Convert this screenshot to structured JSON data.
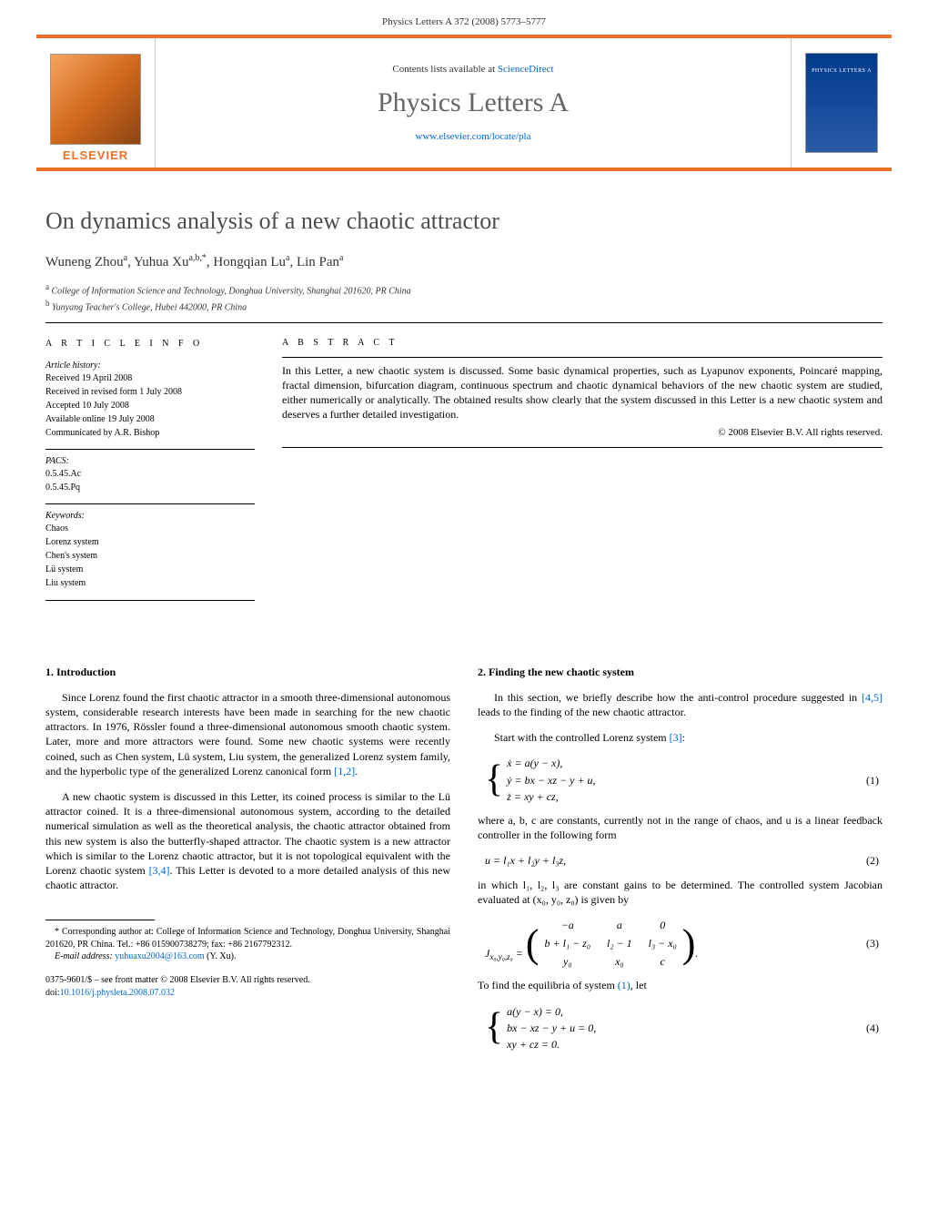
{
  "header": {
    "running_head": "Physics Letters A 372 (2008) 5773–5777"
  },
  "banner": {
    "contents_prefix": "Contents lists available at ",
    "contents_link": "ScienceDirect",
    "journal_title": "Physics Letters A",
    "journal_url": "www.elsevier.com/locate/pla",
    "publisher_logo_text": "ELSEVIER",
    "cover_text": "PHYSICS LETTERS A"
  },
  "article": {
    "title": "On dynamics analysis of a new chaotic attractor",
    "authors_html": "Wuneng Zhou<sup>a</sup>, Yuhua Xu<sup>a,b,*</sup>, Hongqian Lu<sup>a</sup>, Lin Pan<sup>a</sup>",
    "affiliations": [
      {
        "sup": "a",
        "text": "College of Information Science and Technology, Donghua University, Shanghai 201620, PR China"
      },
      {
        "sup": "b",
        "text": "Yunyang Teacher's College, Hubei 442000, PR China"
      }
    ]
  },
  "info": {
    "heading": "a r t i c l e   i n f o",
    "history_label": "Article history:",
    "history": [
      "Received 19 April 2008",
      "Received in revised form 1 July 2008",
      "Accepted 10 July 2008",
      "Available online 19 July 2008",
      "Communicated by A.R. Bishop"
    ],
    "pacs_label": "PACS:",
    "pacs": [
      "0.5.45.Ac",
      "0.5.45.Pq"
    ],
    "keywords_label": "Keywords:",
    "keywords": [
      "Chaos",
      "Lorenz system",
      "Chen's system",
      "Lü system",
      "Liu system"
    ]
  },
  "abstract": {
    "heading": "a b s t r a c t",
    "text": "In this Letter, a new chaotic system is discussed. Some basic dynamical properties, such as Lyapunov exponents, Poincaré mapping, fractal dimension, bifurcation diagram, continuous spectrum and chaotic dynamical behaviors of the new chaotic system are studied, either numerically or analytically. The obtained results show clearly that the system discussed in this Letter is a new chaotic system and deserves a further detailed investigation.",
    "copyright": "© 2008 Elsevier B.V. All rights reserved."
  },
  "body": {
    "left": {
      "section_heading": "1. Introduction",
      "p1": "Since Lorenz found the first chaotic attractor in a smooth three-dimensional autonomous system, considerable research interests have been made in searching for the new chaotic attractors. In 1976, Rössler found a three-dimensional autonomous smooth chaotic system. Later, more and more attractors were found. Some new chaotic systems were recently coined, such as Chen system, Lü system, Liu system, the generalized Lorenz system family, and the hyperbolic type of the generalized Lorenz canonical form ",
      "p1_ref": "[1,2]",
      "p1_end": ".",
      "p2": "A new chaotic system is discussed in this Letter, its coined process is similar to the Lü attractor coined. It is a three-dimensional autonomous system, according to the detailed numerical simulation as well as the theoretical analysis, the chaotic attractor obtained from this new system is also the butterfly-shaped attractor. The chaotic system is a new attractor which is similar to the Lorenz chaotic attractor, but it is not topological equivalent with the Lorenz chaotic system ",
      "p2_ref": "[3,4]",
      "p2_end": ". This Letter is devoted to a more detailed analysis of this new chaotic attractor.",
      "footnote_corr": "* Corresponding author at: College of Information Science and Technology, Donghua University, Shanghai 201620, PR China. Tel.: +86 015900738279; fax: +86 2167792312.",
      "footnote_email_label": "E-mail address:",
      "footnote_email": "yuhuaxu2004@163.com",
      "footnote_email_name": "(Y. Xu).",
      "bottom_issn": "0375-9601/$ – see front matter  © 2008 Elsevier B.V. All rights reserved.",
      "bottom_doi_label": "doi:",
      "bottom_doi": "10.1016/j.physleta.2008.07.032"
    },
    "right": {
      "section_heading": "2. Finding the new chaotic system",
      "p1a": "In this section, we briefly describe how the anti-control procedure suggested in ",
      "p1_ref": "[4,5]",
      "p1b": " leads to the finding of the new chaotic attractor.",
      "p2a": "Start with the controlled Lorenz system ",
      "p2_ref": "[3]",
      "p2b": ":",
      "eq1": {
        "l1": "ẋ = a(y − x),",
        "l2": "ẏ = bx − xz − y + u,",
        "l3": "ż = xy + cz,",
        "num": "(1)"
      },
      "p3": "where a, b, c are constants, currently not in the range of chaos, and u is a linear feedback controller in the following form",
      "eq2": {
        "line": "u = l₁x + l₂y + l₃z,",
        "num": "(2)"
      },
      "p4": "in which l₁, l₂, l₃ are constant gains to be determined. The controlled system Jacobian evaluated at (x₀, y₀, z₀) is given by",
      "eq3": {
        "lhs": "J",
        "sub": "x₀,y₀,z₀",
        "m": [
          [
            "−a",
            "a",
            "0"
          ],
          [
            "b + l₁ − z₀",
            "l₂ − 1",
            "l₃ − x₀"
          ],
          [
            "y₀",
            "x₀",
            "c"
          ]
        ],
        "num": "(3)"
      },
      "p5a": "To find the equilibria of system ",
      "p5_ref": "(1)",
      "p5b": ", let",
      "eq4": {
        "l1": "a(y − x) = 0,",
        "l2": "bx − xz − y + u = 0,",
        "l3": "xy + cz = 0.",
        "num": "(4)"
      }
    }
  },
  "colors": {
    "accent": "#ea7125",
    "link": "#0066cc",
    "title_gray": "#4d4d4d"
  }
}
